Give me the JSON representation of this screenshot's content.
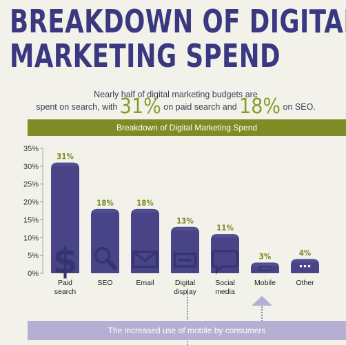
{
  "header": {
    "title_line1": "BREAKDOWN OF DIGITAL",
    "title_line2": "MARKETING SPEND"
  },
  "intro": {
    "part1": "Nearly half of digital marketing budgets are",
    "part2": "spent on search, with ",
    "big1": "31%",
    "part3": " on paid search and ",
    "big2": "18%",
    "part4": " on SEO."
  },
  "banner": {
    "label": "Breakdown of Digital Marketing Spend"
  },
  "footer": {
    "label": "The increased use of mobile by consumers"
  },
  "colors": {
    "bar": "#484487",
    "bar_top": "#5a56a0",
    "accent_green": "#7f8b25",
    "icon_color": "#36346e",
    "footer_band": "#b3b0d3"
  },
  "chart_data": {
    "type": "bar",
    "title": "Breakdown of Digital Marketing Spend",
    "categories": [
      "Paid search",
      "SEO",
      "Email",
      "Digital display",
      "Social media",
      "Mobile",
      "Other"
    ],
    "category_lines": [
      [
        "Paid",
        "search"
      ],
      [
        "SEO"
      ],
      [
        "Email"
      ],
      [
        "Digital",
        "display"
      ],
      [
        "Social",
        "media"
      ],
      [
        "Mobile"
      ],
      [
        "Other"
      ]
    ],
    "values": [
      31,
      18,
      18,
      13,
      11,
      3,
      4
    ],
    "value_labels": [
      "31%",
      "18%",
      "18%",
      "13%",
      "11%",
      "3%",
      "4%"
    ],
    "icons": [
      "dollar-icon",
      "magnifier-icon",
      "envelope-icon",
      "display-icon",
      "speech-bubble-icon",
      "phone-icon",
      "dots-icon"
    ],
    "ylim": [
      0,
      35
    ],
    "yticks": [
      0,
      5,
      10,
      15,
      20,
      25,
      30,
      35
    ],
    "ytick_labels": [
      "0%",
      "5%",
      "10%",
      "15%",
      "20%",
      "25%",
      "30%",
      "35%"
    ],
    "xlabel": "",
    "ylabel": "",
    "grid": false,
    "legend": "none"
  }
}
